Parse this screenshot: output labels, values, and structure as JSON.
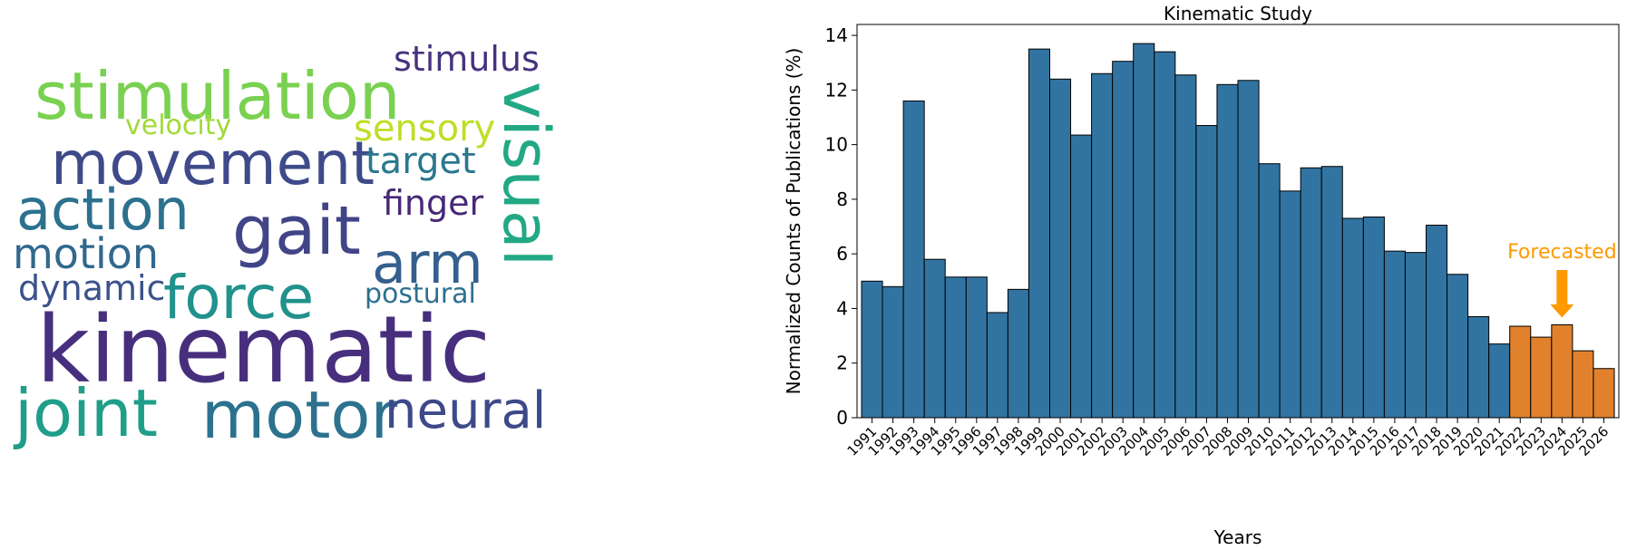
{
  "wordcloud": {
    "words": [
      {
        "text": "stimulation",
        "color": "#7ad151"
      },
      {
        "text": "stimulus",
        "color": "#46337e"
      },
      {
        "text": "visual",
        "color": "#22a884"
      },
      {
        "text": "velocity",
        "color": "#a0da39"
      },
      {
        "text": "sensory",
        "color": "#bddf26"
      },
      {
        "text": "movement",
        "color": "#3e4a89"
      },
      {
        "text": "target",
        "color": "#2a788e"
      },
      {
        "text": "action",
        "color": "#2c718e"
      },
      {
        "text": "gait",
        "color": "#414487"
      },
      {
        "text": "finger",
        "color": "#482878"
      },
      {
        "text": "motion",
        "color": "#31688e"
      },
      {
        "text": "arm",
        "color": "#355f8d"
      },
      {
        "text": "dynamic",
        "color": "#3b528b"
      },
      {
        "text": "force",
        "color": "#21918c"
      },
      {
        "text": "postural",
        "color": "#2d708e"
      },
      {
        "text": "kinematic",
        "color": "#472f7d"
      },
      {
        "text": "joint",
        "color": "#1f9e89"
      },
      {
        "text": "motor",
        "color": "#2c728e"
      },
      {
        "text": "neural",
        "color": "#3e4989"
      }
    ]
  },
  "chart_data": {
    "type": "bar",
    "title": "Kinematic Study",
    "xlabel": "Years",
    "ylabel": "Normalized Counts of Publications (%)",
    "ylim": [
      0,
      14.4
    ],
    "yticks": [
      0,
      2,
      4,
      6,
      8,
      10,
      12,
      14
    ],
    "categories": [
      "1991",
      "1992",
      "1993",
      "1994",
      "1995",
      "1996",
      "1997",
      "1998",
      "1999",
      "2000",
      "2001",
      "2002",
      "2003",
      "2004",
      "2005",
      "2006",
      "2007",
      "2008",
      "2009",
      "2010",
      "2011",
      "2012",
      "2013",
      "2014",
      "2015",
      "2016",
      "2017",
      "2018",
      "2019",
      "2020",
      "2021",
      "2022",
      "2023",
      "2024",
      "2025",
      "2026"
    ],
    "series": [
      {
        "values": [
          5.0,
          4.8,
          11.6,
          5.8,
          5.15,
          5.15,
          3.85,
          4.7,
          13.5,
          12.4,
          10.35,
          12.6,
          13.05,
          13.7,
          13.4,
          12.55,
          10.7,
          12.2,
          12.35,
          9.3,
          8.3,
          9.15,
          9.2,
          7.3,
          7.35,
          6.1,
          6.05,
          7.05,
          5.25,
          3.7,
          2.7,
          3.35,
          2.95,
          3.4,
          2.45,
          1.8
        ]
      }
    ],
    "colors": {
      "historical": "#3274a1",
      "forecast": "#e1812c",
      "annotation": "#ff9900"
    },
    "forecast_start": "2022",
    "annotation": {
      "text": "Forecasted",
      "target": "2024"
    }
  }
}
